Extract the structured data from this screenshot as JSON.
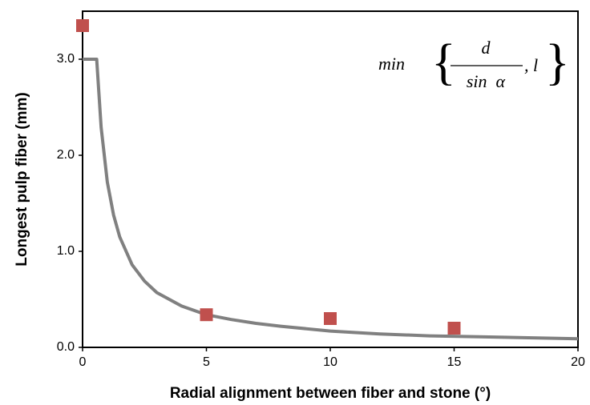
{
  "chart_data": {
    "type": "scatter",
    "xlabel": "Radial alignment between fiber and stone (°)",
    "ylabel": "Longest pulp fiber (mm)",
    "annotation": {
      "func": "min",
      "numerator": "d",
      "denominator": "sin  α",
      "tail": ", l"
    },
    "xlim": [
      0,
      20
    ],
    "ylim": [
      0,
      3.5
    ],
    "xticks": [
      0,
      5,
      10,
      15,
      20
    ],
    "yticks": [
      {
        "value": 0,
        "label": "0.0"
      },
      {
        "value": 1,
        "label": "1.0"
      },
      {
        "value": 2,
        "label": "2.0"
      },
      {
        "value": 3,
        "label": "3.0"
      }
    ],
    "series": [
      {
        "type": "line",
        "color": "#808080",
        "x": [
          0,
          0.57,
          0.75,
          1,
          1.25,
          1.5,
          2,
          2.5,
          3,
          4,
          5,
          6,
          7,
          8,
          10,
          12,
          14,
          16,
          18,
          20
        ],
        "values": [
          3.0,
          3.0,
          2.29,
          1.72,
          1.38,
          1.15,
          0.86,
          0.69,
          0.57,
          0.43,
          0.34,
          0.29,
          0.25,
          0.22,
          0.17,
          0.14,
          0.12,
          0.11,
          0.1,
          0.09
        ]
      },
      {
        "type": "scatter",
        "color": "#c0504d",
        "x": [
          0,
          5,
          10,
          15
        ],
        "values": [
          3.35,
          0.34,
          0.3,
          0.2
        ]
      }
    ]
  }
}
